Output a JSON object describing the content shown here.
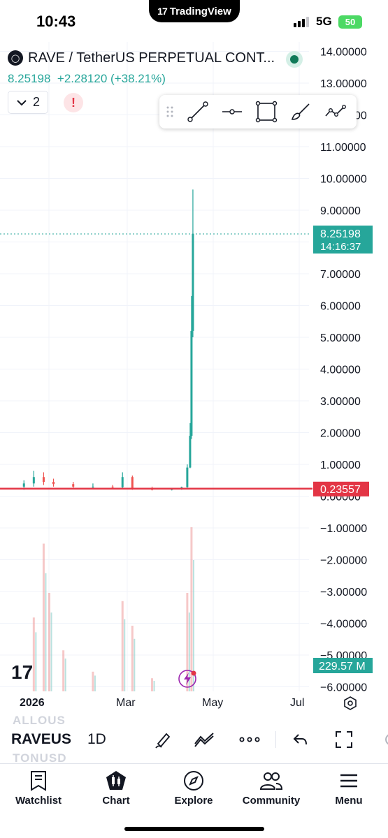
{
  "status_bar": {
    "time": "10:43",
    "app_pill": "TradingView",
    "network": "5G",
    "battery": "50"
  },
  "symbol_header": {
    "title": "RAVE / TetherUS PERPETUAL CONT...",
    "last_price": "8.25198",
    "change": "+2.28120",
    "change_pct": "(+38.21%)",
    "indicators_count": "2",
    "alert_glyph": "!"
  },
  "drawing_toolbar": {
    "tools": [
      {
        "icon": "trend-line-icon"
      },
      {
        "icon": "horizontal-ray-icon"
      },
      {
        "icon": "rectangle-icon"
      },
      {
        "icon": "brush-icon"
      },
      {
        "icon": "path-icon"
      }
    ]
  },
  "chart_data": {
    "type": "candlestick",
    "title": "",
    "price_axis": {
      "ticks": [
        "14.00000",
        "13.00000",
        "12.00000",
        "11.00000",
        "10.00000",
        "9.00000",
        "8.00000",
        "7.00000",
        "6.00000",
        "5.00000",
        "4.00000",
        "3.00000",
        "2.00000",
        "1.00000",
        "0.00000",
        "−1.00000",
        "−2.00000",
        "−3.00000",
        "−4.00000",
        "−5.00000",
        "−6.00000"
      ],
      "ylim": [
        -6,
        14.4
      ]
    },
    "time_axis": {
      "labels": [
        "2026",
        "Mar",
        "May",
        "Jul"
      ]
    },
    "last_price_label": {
      "value": "8.25198",
      "countdown": "14:16:37",
      "price": 8.25198
    },
    "horizontal_line": {
      "value": "0.23557",
      "price": 0.23557,
      "color": "#e33545"
    },
    "volume_label": "229.57 M",
    "price_series": [
      {
        "x": "2025-12-18",
        "o": 0.3,
        "h": 0.5,
        "l": 0.2,
        "c": 0.4
      },
      {
        "x": "2025-12-25",
        "o": 0.4,
        "h": 0.8,
        "l": 0.3,
        "c": 0.6
      },
      {
        "x": "2026-01-01",
        "o": 0.6,
        "h": 0.75,
        "l": 0.35,
        "c": 0.45
      },
      {
        "x": "2026-01-08",
        "o": 0.45,
        "h": 0.55,
        "l": 0.3,
        "c": 0.38
      },
      {
        "x": "2026-01-22",
        "o": 0.38,
        "h": 0.45,
        "l": 0.25,
        "c": 0.3
      },
      {
        "x": "2026-02-05",
        "o": 0.3,
        "h": 0.4,
        "l": 0.24,
        "c": 0.3
      },
      {
        "x": "2026-02-19",
        "o": 0.3,
        "h": 0.35,
        "l": 0.24,
        "c": 0.28
      },
      {
        "x": "2026-02-26",
        "o": 0.28,
        "h": 0.75,
        "l": 0.26,
        "c": 0.6
      },
      {
        "x": "2026-03-05",
        "o": 0.6,
        "h": 0.65,
        "l": 0.2,
        "c": 0.25
      },
      {
        "x": "2026-03-19",
        "o": 0.25,
        "h": 0.3,
        "l": 0.18,
        "c": 0.2
      },
      {
        "x": "2026-04-02",
        "o": 0.2,
        "h": 0.25,
        "l": 0.18,
        "c": 0.22
      },
      {
        "x": "2026-04-09",
        "o": 0.22,
        "h": 0.3,
        "l": 0.2,
        "c": 0.28
      },
      {
        "x": "2026-04-13",
        "o": 0.28,
        "h": 1.0,
        "l": 0.27,
        "c": 0.9
      },
      {
        "x": "2026-04-15",
        "o": 0.9,
        "h": 2.3,
        "l": 0.88,
        "c": 1.9
      },
      {
        "x": "2026-04-16",
        "o": 1.9,
        "h": 6.3,
        "l": 1.8,
        "c": 5.2
      },
      {
        "x": "2026-04-17",
        "o": 5.2,
        "h": 9.65,
        "l": 5.0,
        "c": 8.25198
      }
    ],
    "volume_series": [
      {
        "x": "2025-12-25",
        "v": 0.45
      },
      {
        "x": "2026-01-01",
        "v": 0.9
      },
      {
        "x": "2026-01-05",
        "v": 0.6
      },
      {
        "x": "2026-01-15",
        "v": 0.25
      },
      {
        "x": "2026-02-05",
        "v": 0.12
      },
      {
        "x": "2026-02-26",
        "v": 0.55
      },
      {
        "x": "2026-03-05",
        "v": 0.4
      },
      {
        "x": "2026-03-19",
        "v": 0.08
      },
      {
        "x": "2026-04-13",
        "v": 0.6
      },
      {
        "x": "2026-04-16",
        "v": 1.0
      }
    ],
    "colors": {
      "up": "#26a69a",
      "down": "#ef5350",
      "grid": "#f0f3fa"
    }
  },
  "bottom_toolbar": {
    "ghost_top": "ALLOUS",
    "ghost_bottom": "TONUSD",
    "symbol": "RAVEUSDT",
    "interval": "1D"
  },
  "tabs": [
    {
      "label": "Watchlist",
      "icon": "watchlist-icon"
    },
    {
      "label": "Chart",
      "icon": "chart-icon"
    },
    {
      "label": "Explore",
      "icon": "compass-icon"
    },
    {
      "label": "Community",
      "icon": "community-icon"
    },
    {
      "label": "Menu",
      "icon": "menu-icon"
    }
  ]
}
